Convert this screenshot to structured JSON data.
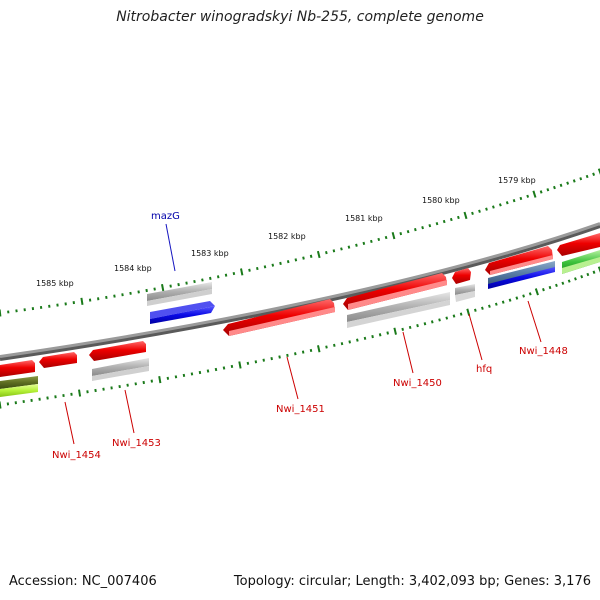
{
  "title": "Nitrobacter winogradskyi Nb-255, complete genome",
  "footer": {
    "accession": "Accession: NC_007406",
    "topology": "Topology: circular; Length: 3,402,093 bp; Genes: 3,176"
  },
  "colors": {
    "forward_red": "#e80000",
    "gray": "#a8a8a8",
    "blue": "#1010e8",
    "green": "#30b030",
    "label_red": "#cc0000",
    "label_blue": "#0000aa",
    "tick": "#1a7a1a"
  },
  "scale_labels": [
    {
      "id": "kbp-1579",
      "text": "1579 kbp"
    },
    {
      "id": "kbp-1580",
      "text": "1580 kbp"
    },
    {
      "id": "kbp-1581",
      "text": "1581 kbp"
    },
    {
      "id": "kbp-1582",
      "text": "1582 kbp"
    },
    {
      "id": "kbp-1583",
      "text": "1583 kbp"
    },
    {
      "id": "kbp-1584",
      "text": "1584 kbp"
    },
    {
      "id": "kbp-1585",
      "text": "1585 kbp"
    }
  ],
  "gene_labels": [
    {
      "id": "mazG",
      "text": "mazG"
    },
    {
      "id": "Nwi_1448",
      "text": "Nwi_1448"
    },
    {
      "id": "hfq",
      "text": "hfq"
    },
    {
      "id": "Nwi_1450",
      "text": "Nwi_1450"
    },
    {
      "id": "Nwi_1451",
      "text": "Nwi_1451"
    },
    {
      "id": "Nwi_1453",
      "text": "Nwi_1453"
    },
    {
      "id": "Nwi_1454",
      "text": "Nwi_1454"
    }
  ]
}
